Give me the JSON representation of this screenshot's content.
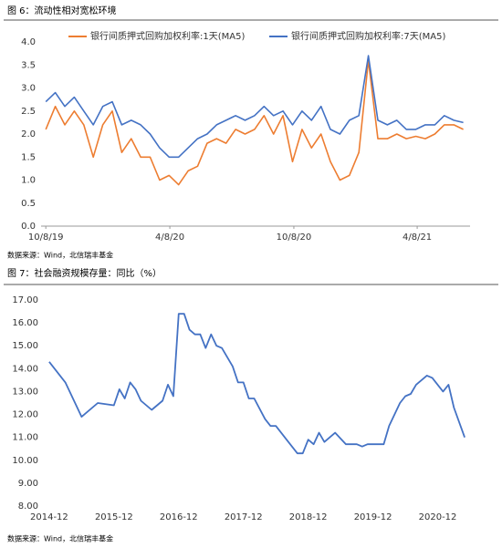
{
  "chart_data": [
    {
      "type": "line",
      "title": "图 6：流动性相对宽松环境",
      "source": "数据来源：Wind，北信瑞丰基金",
      "x": [
        "10/8/19",
        "10/22/19",
        "11/5/19",
        "11/19/19",
        "12/3/19",
        "12/17/19",
        "12/31/19",
        "1/14/20",
        "1/28/20",
        "2/11/20",
        "2/25/20",
        "3/10/20",
        "3/24/20",
        "4/7/20",
        "4/21/20",
        "5/5/20",
        "5/19/20",
        "6/2/20",
        "6/16/20",
        "6/30/20",
        "7/14/20",
        "7/28/20",
        "8/11/20",
        "8/25/20",
        "9/8/20",
        "9/22/20",
        "10/6/20",
        "10/20/20",
        "11/3/20",
        "11/17/20",
        "12/1/20",
        "12/15/20",
        "12/29/20",
        "1/12/21",
        "1/26/21",
        "2/9/21",
        "2/23/21",
        "3/9/21",
        "3/23/21",
        "4/6/21",
        "4/20/21",
        "5/4/21",
        "5/18/21",
        "6/1/21",
        "6/15/21"
      ],
      "xlim": [
        "10/1/19",
        "6/25/21"
      ],
      "xticks": [
        "10/8/19",
        "4/8/20",
        "10/8/20",
        "4/8/21"
      ],
      "ylim": [
        0,
        4
      ],
      "yticks": [
        {
          "value": 0,
          "label": "0.0"
        },
        0.5,
        {
          "value": 1,
          "label": "1.0"
        },
        1.5,
        {
          "value": 2,
          "label": "2.0"
        },
        2.5,
        {
          "value": 3,
          "label": "3.0"
        },
        3.5,
        {
          "value": 4,
          "label": "4.0"
        }
      ],
      "legend": "top",
      "series": [
        {
          "name": "银行间质押式回购加权利率:1天(MA5)",
          "color": "#ED7D31",
          "values": [
            2.1,
            2.6,
            2.2,
            2.5,
            2.2,
            1.5,
            2.2,
            2.5,
            1.6,
            1.9,
            1.5,
            1.5,
            1.0,
            1.1,
            0.9,
            1.2,
            1.3,
            1.8,
            1.9,
            1.8,
            2.1,
            2.0,
            2.1,
            2.4,
            2.0,
            2.4,
            1.4,
            2.1,
            1.7,
            2.0,
            1.4,
            1.0,
            1.1,
            1.6,
            3.6,
            1.9,
            1.9,
            2.0,
            1.9,
            1.95,
            1.9,
            2.0,
            2.2,
            2.2,
            2.1
          ]
        },
        {
          "name": "银行间质押式回购加权利率:7天(MA5)",
          "color": "#4472C4",
          "values": [
            2.7,
            2.9,
            2.6,
            2.8,
            2.5,
            2.2,
            2.6,
            2.7,
            2.2,
            2.3,
            2.2,
            2.0,
            1.7,
            1.5,
            1.5,
            1.7,
            1.9,
            2.0,
            2.2,
            2.3,
            2.4,
            2.3,
            2.4,
            2.6,
            2.4,
            2.5,
            2.2,
            2.5,
            2.3,
            2.6,
            2.1,
            2.0,
            2.3,
            2.4,
            3.7,
            2.3,
            2.2,
            2.3,
            2.1,
            2.1,
            2.2,
            2.2,
            2.4,
            2.3,
            2.25
          ]
        }
      ]
    },
    {
      "type": "line",
      "title": "图 7：社会融资规模存量：同比（%）",
      "source": "数据来源：Wind，北信瑞丰基金",
      "x": [
        "2014-12",
        "2015-03",
        "2015-06",
        "2015-09",
        "2015-12",
        "2016-01",
        "2016-02",
        "2016-03",
        "2016-04",
        "2016-05",
        "2016-07",
        "2016-09",
        "2016-10",
        "2016-11",
        "2016-12",
        "2017-01",
        "2017-02",
        "2017-03",
        "2017-04",
        "2017-05",
        "2017-06",
        "2017-07",
        "2017-08",
        "2017-10",
        "2017-11",
        "2017-12",
        "2018-01",
        "2018-02",
        "2018-04",
        "2018-05",
        "2018-06",
        "2018-08",
        "2018-10",
        "2018-11",
        "2018-12",
        "2019-01",
        "2019-02",
        "2019-03",
        "2019-05",
        "2019-07",
        "2019-09",
        "2019-10",
        "2019-11",
        "2020-02",
        "2020-03",
        "2020-05",
        "2020-06",
        "2020-07",
        "2020-08",
        "2020-10",
        "2020-11",
        "2020-12",
        "2021-01",
        "2021-02",
        "2021-03",
        "2021-05"
      ],
      "xlim": [
        "2014-11",
        "2021-06"
      ],
      "xticks": [
        "2014-12",
        "2015-12",
        "2016-12",
        "2017-12",
        "2018-12",
        "2019-12",
        "2020-12"
      ],
      "ylim": [
        8,
        17
      ],
      "yticks": [
        {
          "value": 8,
          "label": "8.00"
        },
        {
          "value": 9,
          "label": "9.00"
        },
        {
          "value": 10,
          "label": "10.00"
        },
        {
          "value": 11,
          "label": "11.00"
        },
        {
          "value": 12,
          "label": "12.00"
        },
        {
          "value": 13,
          "label": "13.00"
        },
        {
          "value": 14,
          "label": "14.00"
        },
        {
          "value": 15,
          "label": "15.00"
        },
        {
          "value": 16,
          "label": "16.00"
        },
        {
          "value": 17,
          "label": "17.00"
        }
      ],
      "series": [
        {
          "color": "#4472C4",
          "values": [
            14.3,
            13.4,
            11.9,
            12.5,
            12.4,
            13.1,
            12.7,
            13.4,
            13.1,
            12.6,
            12.2,
            12.6,
            13.3,
            12.8,
            16.4,
            16.4,
            15.7,
            15.5,
            15.5,
            14.9,
            15.5,
            15.0,
            14.9,
            14.1,
            13.4,
            13.4,
            12.7,
            12.7,
            11.8,
            11.5,
            11.5,
            10.9,
            10.3,
            10.3,
            10.9,
            10.7,
            11.2,
            10.8,
            11.2,
            10.7,
            10.7,
            10.6,
            10.7,
            10.7,
            11.5,
            12.5,
            12.8,
            12.9,
            13.3,
            13.7,
            13.6,
            13.3,
            13.0,
            13.3,
            12.3,
            11.0
          ]
        }
      ]
    }
  ]
}
